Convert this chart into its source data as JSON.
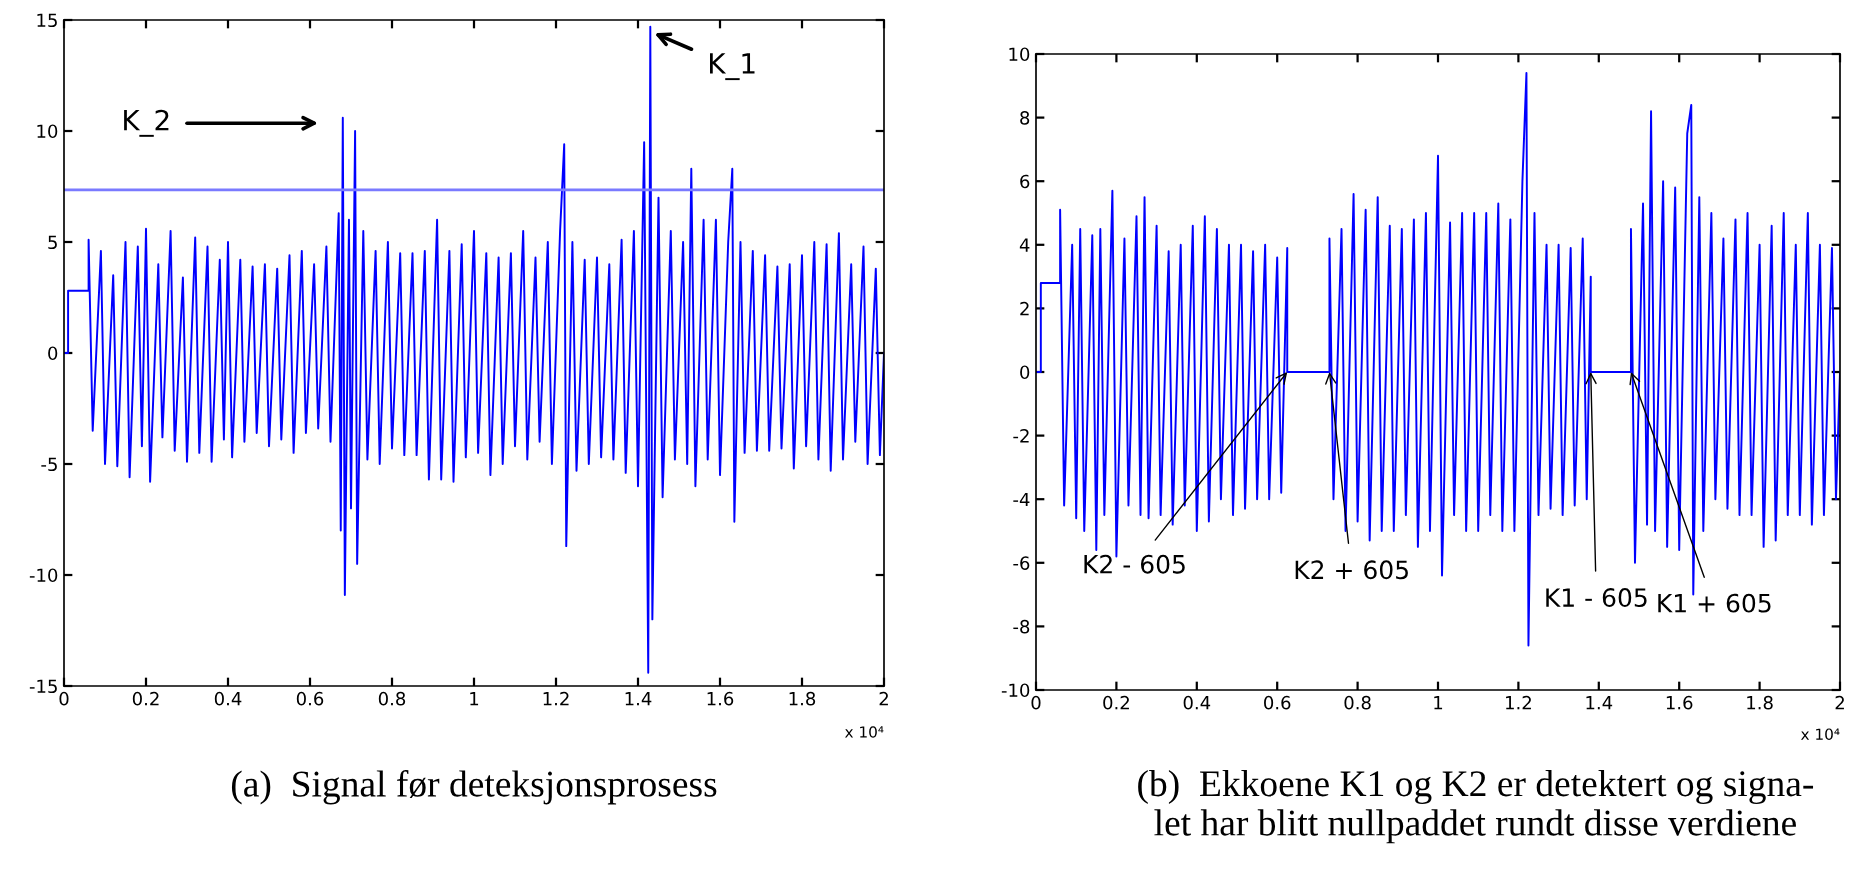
{
  "chart_data": [
    {
      "type": "line",
      "title": "(a)  Signal før deteksjonsprosess",
      "annotations": [
        "x 10⁴",
        "K_2",
        {
          "text": "K_1",
          "x": 1.44,
          "y": 14.4
        }
      ],
      "xlim": [
        0,
        2
      ],
      "xticks": [
        0,
        0.2,
        0.4,
        0.6,
        0.8,
        1,
        1.2,
        1.4,
        1.6,
        1.8,
        2
      ],
      "ylim": [
        -15,
        15
      ],
      "yticks": [
        -15,
        -10,
        -5,
        0,
        5,
        10,
        15
      ],
      "grid": false,
      "ref_lines": [
        {
          "axis": "y",
          "value": 7.35,
          "color": "#7a7aff"
        }
      ],
      "series": [
        {
          "color": "#0000ff",
          "x": [
            0,
            0.01,
            0.01,
            0.06,
            0.06,
            0.07,
            0.09,
            0.1,
            0.12,
            0.13,
            0.15,
            0.16,
            0.18,
            0.19,
            0.2,
            0.21,
            0.23,
            0.24,
            0.26,
            0.27,
            0.29,
            0.3,
            0.32,
            0.33,
            0.35,
            0.36,
            0.38,
            0.39,
            0.4,
            0.41,
            0.43,
            0.44,
            0.46,
            0.47,
            0.49,
            0.5,
            0.52,
            0.53,
            0.55,
            0.56,
            0.58,
            0.59,
            0.61,
            0.62,
            0.64,
            0.65,
            0.67,
            0.675,
            0.68,
            0.685,
            0.695,
            0.7,
            0.71,
            0.715,
            0.73,
            0.74,
            0.76,
            0.77,
            0.79,
            0.8,
            0.82,
            0.83,
            0.85,
            0.86,
            0.88,
            0.89,
            0.91,
            0.92,
            0.94,
            0.95,
            0.97,
            0.98,
            1.0,
            1.01,
            1.03,
            1.04,
            1.06,
            1.07,
            1.09,
            1.1,
            1.12,
            1.13,
            1.15,
            1.16,
            1.18,
            1.19,
            1.21,
            1.22,
            1.225,
            1.24,
            1.25,
            1.27,
            1.28,
            1.3,
            1.31,
            1.33,
            1.34,
            1.36,
            1.37,
            1.39,
            1.4,
            1.415,
            1.425,
            1.43,
            1.435,
            1.45,
            1.46,
            1.48,
            1.49,
            1.51,
            1.52,
            1.53,
            1.54,
            1.56,
            1.57,
            1.59,
            1.6,
            1.62,
            1.63,
            1.635,
            1.65,
            1.66,
            1.68,
            1.69,
            1.71,
            1.72,
            1.74,
            1.75,
            1.77,
            1.78,
            1.8,
            1.81,
            1.83,
            1.84,
            1.86,
            1.87,
            1.89,
            1.9,
            1.92,
            1.93,
            1.95,
            1.96,
            1.98,
            1.99,
            2.0
          ],
          "values": [
            0,
            0,
            2.8,
            2.8,
            5.1,
            -3.5,
            4.6,
            -5.0,
            3.5,
            -5.1,
            5.0,
            -5.6,
            4.8,
            -4.2,
            5.6,
            -5.8,
            4.0,
            -3.8,
            5.5,
            -4.4,
            3.4,
            -4.9,
            5.2,
            -4.5,
            4.8,
            -4.9,
            4.2,
            -3.9,
            5.0,
            -4.7,
            4.2,
            -4.0,
            3.9,
            -3.6,
            4.0,
            -4.2,
            3.8,
            -3.9,
            4.4,
            -4.5,
            4.6,
            -3.6,
            4.0,
            -3.4,
            4.8,
            -4.0,
            6.3,
            -8.0,
            10.6,
            -10.9,
            6.0,
            -7.0,
            10.0,
            -9.5,
            5.5,
            -4.8,
            4.6,
            -5.0,
            5.0,
            -4.3,
            4.5,
            -4.6,
            4.5,
            -4.6,
            4.6,
            -5.7,
            6.0,
            -5.7,
            4.6,
            -5.8,
            4.9,
            -4.7,
            5.5,
            -4.5,
            4.5,
            -5.5,
            4.3,
            -5.0,
            4.5,
            -4.2,
            5.5,
            -4.8,
            4.3,
            -4.0,
            5.0,
            -5.0,
            5.5,
            9.4,
            -8.7,
            5.0,
            -5.3,
            4.2,
            -5.0,
            4.3,
            -4.7,
            4.0,
            -4.8,
            5.1,
            -5.4,
            5.5,
            -6.0,
            9.5,
            -14.4,
            14.7,
            -12.0,
            7.0,
            -6.5,
            5.5,
            -4.8,
            5.0,
            -5.0,
            8.3,
            -6.0,
            6.0,
            -4.8,
            6.0,
            -5.5,
            5.0,
            8.3,
            -7.6,
            5.0,
            -4.5,
            4.6,
            -4.4,
            4.4,
            -4.4,
            3.9,
            -4.3,
            4.0,
            -5.2,
            4.4,
            -4.2,
            5.0,
            -4.8,
            4.9,
            -5.3,
            5.4,
            -4.8,
            4.0,
            -4.0,
            4.8,
            -5.0,
            3.8,
            -4.6,
            0.0
          ]
        }
      ]
    },
    {
      "type": "line",
      "title": "(b)  Ekkoene K1 og K2 er detektert og signa-\nlet har blitt nullpaddet rundt disse verdiene",
      "annotations": [
        "x 10⁴",
        {
          "text": "K2 - 605",
          "x": 0.625,
          "y": 0
        },
        {
          "text": "K2 + 605",
          "x": 0.73,
          "y": 0
        },
        {
          "text": "K1 - 605",
          "x": 1.38,
          "y": 0
        },
        {
          "text": "K1 + 605",
          "x": 1.48,
          "y": 0
        }
      ],
      "xlim": [
        0,
        2
      ],
      "xticks": [
        0,
        0.2,
        0.4,
        0.6,
        0.8,
        1,
        1.2,
        1.4,
        1.6,
        1.8,
        2
      ],
      "ylim": [
        -10,
        10
      ],
      "yticks": [
        -10,
        -8,
        -6,
        -4,
        -2,
        0,
        2,
        4,
        6,
        8,
        10
      ],
      "grid": false,
      "series": [
        {
          "color": "#0000ff",
          "x": [
            0,
            0.012,
            0.012,
            0.06,
            0.06,
            0.07,
            0.09,
            0.1,
            0.11,
            0.12,
            0.14,
            0.15,
            0.16,
            0.17,
            0.19,
            0.2,
            0.22,
            0.23,
            0.25,
            0.26,
            0.27,
            0.28,
            0.3,
            0.31,
            0.33,
            0.34,
            0.36,
            0.37,
            0.39,
            0.4,
            0.42,
            0.43,
            0.45,
            0.46,
            0.48,
            0.49,
            0.51,
            0.52,
            0.54,
            0.55,
            0.57,
            0.58,
            0.6,
            0.61,
            0.625,
            0.625,
            0.73,
            0.73,
            0.74,
            0.76,
            0.77,
            0.79,
            0.8,
            0.82,
            0.83,
            0.85,
            0.86,
            0.88,
            0.89,
            0.91,
            0.92,
            0.94,
            0.95,
            0.97,
            0.98,
            1.0,
            1.01,
            1.03,
            1.04,
            1.06,
            1.07,
            1.09,
            1.1,
            1.12,
            1.13,
            1.15,
            1.16,
            1.18,
            1.19,
            1.21,
            1.22,
            1.225,
            1.24,
            1.25,
            1.27,
            1.28,
            1.3,
            1.31,
            1.33,
            1.34,
            1.36,
            1.37,
            1.38,
            1.38,
            1.48,
            1.48,
            1.49,
            1.51,
            1.52,
            1.53,
            1.54,
            1.56,
            1.57,
            1.59,
            1.6,
            1.62,
            1.63,
            1.635,
            1.65,
            1.66,
            1.68,
            1.69,
            1.71,
            1.72,
            1.74,
            1.75,
            1.77,
            1.78,
            1.8,
            1.81,
            1.83,
            1.84,
            1.86,
            1.87,
            1.89,
            1.9,
            1.92,
            1.93,
            1.95,
            1.96,
            1.98,
            1.99,
            2.0
          ],
          "values": [
            0,
            0,
            2.8,
            2.8,
            5.1,
            -4.2,
            4.0,
            -4.6,
            4.5,
            -5.0,
            4.3,
            -5.6,
            4.5,
            -4.5,
            5.7,
            -5.8,
            4.2,
            -4.2,
            4.9,
            -4.5,
            5.5,
            -4.6,
            4.6,
            -4.5,
            3.8,
            -4.8,
            4.0,
            -4.2,
            4.6,
            -5.0,
            4.9,
            -4.7,
            4.5,
            -4.0,
            4.0,
            -4.5,
            4.0,
            -4.3,
            3.8,
            -4.0,
            4.0,
            -4.0,
            3.6,
            -3.8,
            3.9,
            0,
            0,
            4.2,
            -4.0,
            4.5,
            -5.0,
            5.6,
            -4.7,
            5.1,
            -5.3,
            5.5,
            -5.0,
            4.6,
            -5.0,
            4.5,
            -4.5,
            4.8,
            -5.5,
            5.0,
            -5.0,
            6.8,
            -6.4,
            4.7,
            -4.5,
            5.0,
            -5.0,
            5.0,
            -5.0,
            5.0,
            -4.5,
            5.3,
            -5.0,
            4.8,
            -5.0,
            6.0,
            9.4,
            -8.6,
            5.0,
            -4.5,
            4.0,
            -4.3,
            4.0,
            -4.5,
            3.9,
            -4.2,
            4.2,
            -4.0,
            3.0,
            0,
            0,
            4.5,
            -6.0,
            5.3,
            -4.8,
            8.2,
            -5.0,
            6.0,
            -5.5,
            5.8,
            -5.6,
            7.5,
            8.4,
            -7.0,
            5.5,
            -5.0,
            5.0,
            -4.0,
            4.2,
            -4.3,
            4.8,
            -4.5,
            5.0,
            -4.5,
            4.0,
            -5.5,
            4.6,
            -5.3,
            5.0,
            -4.5,
            4.0,
            -4.5,
            5.0,
            -4.8,
            4.0,
            -4.5,
            3.9,
            -4.0,
            0.0
          ]
        }
      ]
    }
  ]
}
